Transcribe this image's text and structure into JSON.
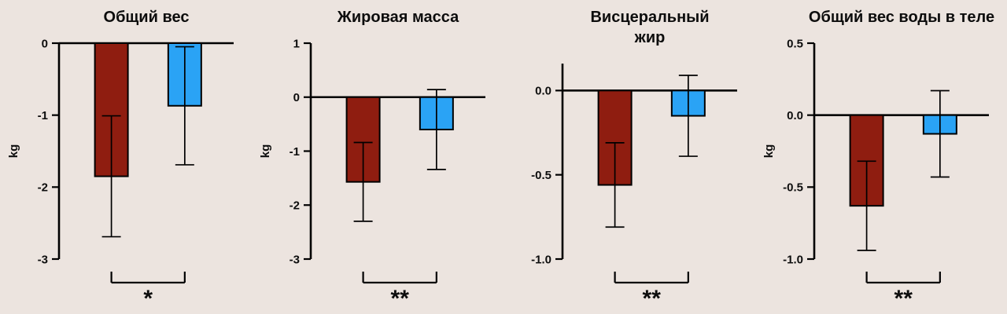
{
  "page": {
    "background": "#ece4df"
  },
  "colors": {
    "diet_bar": "#8f1d10",
    "control_bar": "#2aa3f5",
    "axis": "#000000",
    "text": "#0d0d0d"
  },
  "chart_data": [
    {
      "type": "bar",
      "title": "Общий вес",
      "title_lines": [
        "Общий вес"
      ],
      "ylabel": "kg",
      "ylim": [
        -3,
        0
      ],
      "yticks": [
        0,
        -1,
        -2,
        -3
      ],
      "ytick_labels": [
        "0",
        "-1",
        "-2",
        "-3"
      ],
      "grid": false,
      "legend": "none",
      "series": [
        {
          "name": "dark-red-group",
          "value": -1.85,
          "sd": 0.84,
          "color": "#8f1d10"
        },
        {
          "name": "blue-group",
          "value": -0.87,
          "sd": 0.82,
          "color": "#2aa3f5"
        }
      ],
      "significance": "*"
    },
    {
      "type": "bar",
      "title": "Жировая масса",
      "title_lines": [
        "Жировая масса"
      ],
      "ylabel": "kg",
      "ylim": [
        -3,
        1
      ],
      "yticks": [
        1,
        0,
        -1,
        -2,
        -3
      ],
      "ytick_labels": [
        "1",
        "0",
        "-1",
        "-2",
        "-3"
      ],
      "grid": false,
      "legend": "none",
      "series": [
        {
          "name": "dark-red-group",
          "value": -1.57,
          "sd": 0.73,
          "color": "#8f1d10"
        },
        {
          "name": "blue-group",
          "value": -0.6,
          "sd": 0.74,
          "color": "#2aa3f5"
        }
      ],
      "significance": "**"
    },
    {
      "type": "bar",
      "title": "Висцеральный жир",
      "title_lines": [
        "Висцеральный",
        "жир"
      ],
      "ylabel": "",
      "ylim": [
        -1.0,
        0.16
      ],
      "yticks": [
        0.0,
        -0.5,
        -1.0
      ],
      "ytick_labels": [
        "0.0",
        "-0.5",
        "-1.0"
      ],
      "grid": false,
      "legend": "none",
      "series": [
        {
          "name": "dark-red-group",
          "value": -0.56,
          "sd": 0.25,
          "color": "#8f1d10"
        },
        {
          "name": "blue-group",
          "value": -0.15,
          "sd": 0.24,
          "color": "#2aa3f5"
        }
      ],
      "significance": "**"
    },
    {
      "type": "bar",
      "title": "Общий вес воды в теле",
      "title_lines": [
        "Общий вес воды в теле"
      ],
      "ylabel": "kg",
      "ylim": [
        -1.0,
        0.5
      ],
      "yticks": [
        0.5,
        0.0,
        -0.5,
        -1.0
      ],
      "ytick_labels": [
        "0.5",
        "0.0",
        "-0.5",
        "-1.0"
      ],
      "grid": false,
      "legend": "none",
      "series": [
        {
          "name": "dark-red-group",
          "value": -0.63,
          "sd": 0.31,
          "color": "#8f1d10"
        },
        {
          "name": "blue-group",
          "value": -0.13,
          "sd": 0.3,
          "color": "#2aa3f5"
        }
      ],
      "significance": "**"
    }
  ]
}
